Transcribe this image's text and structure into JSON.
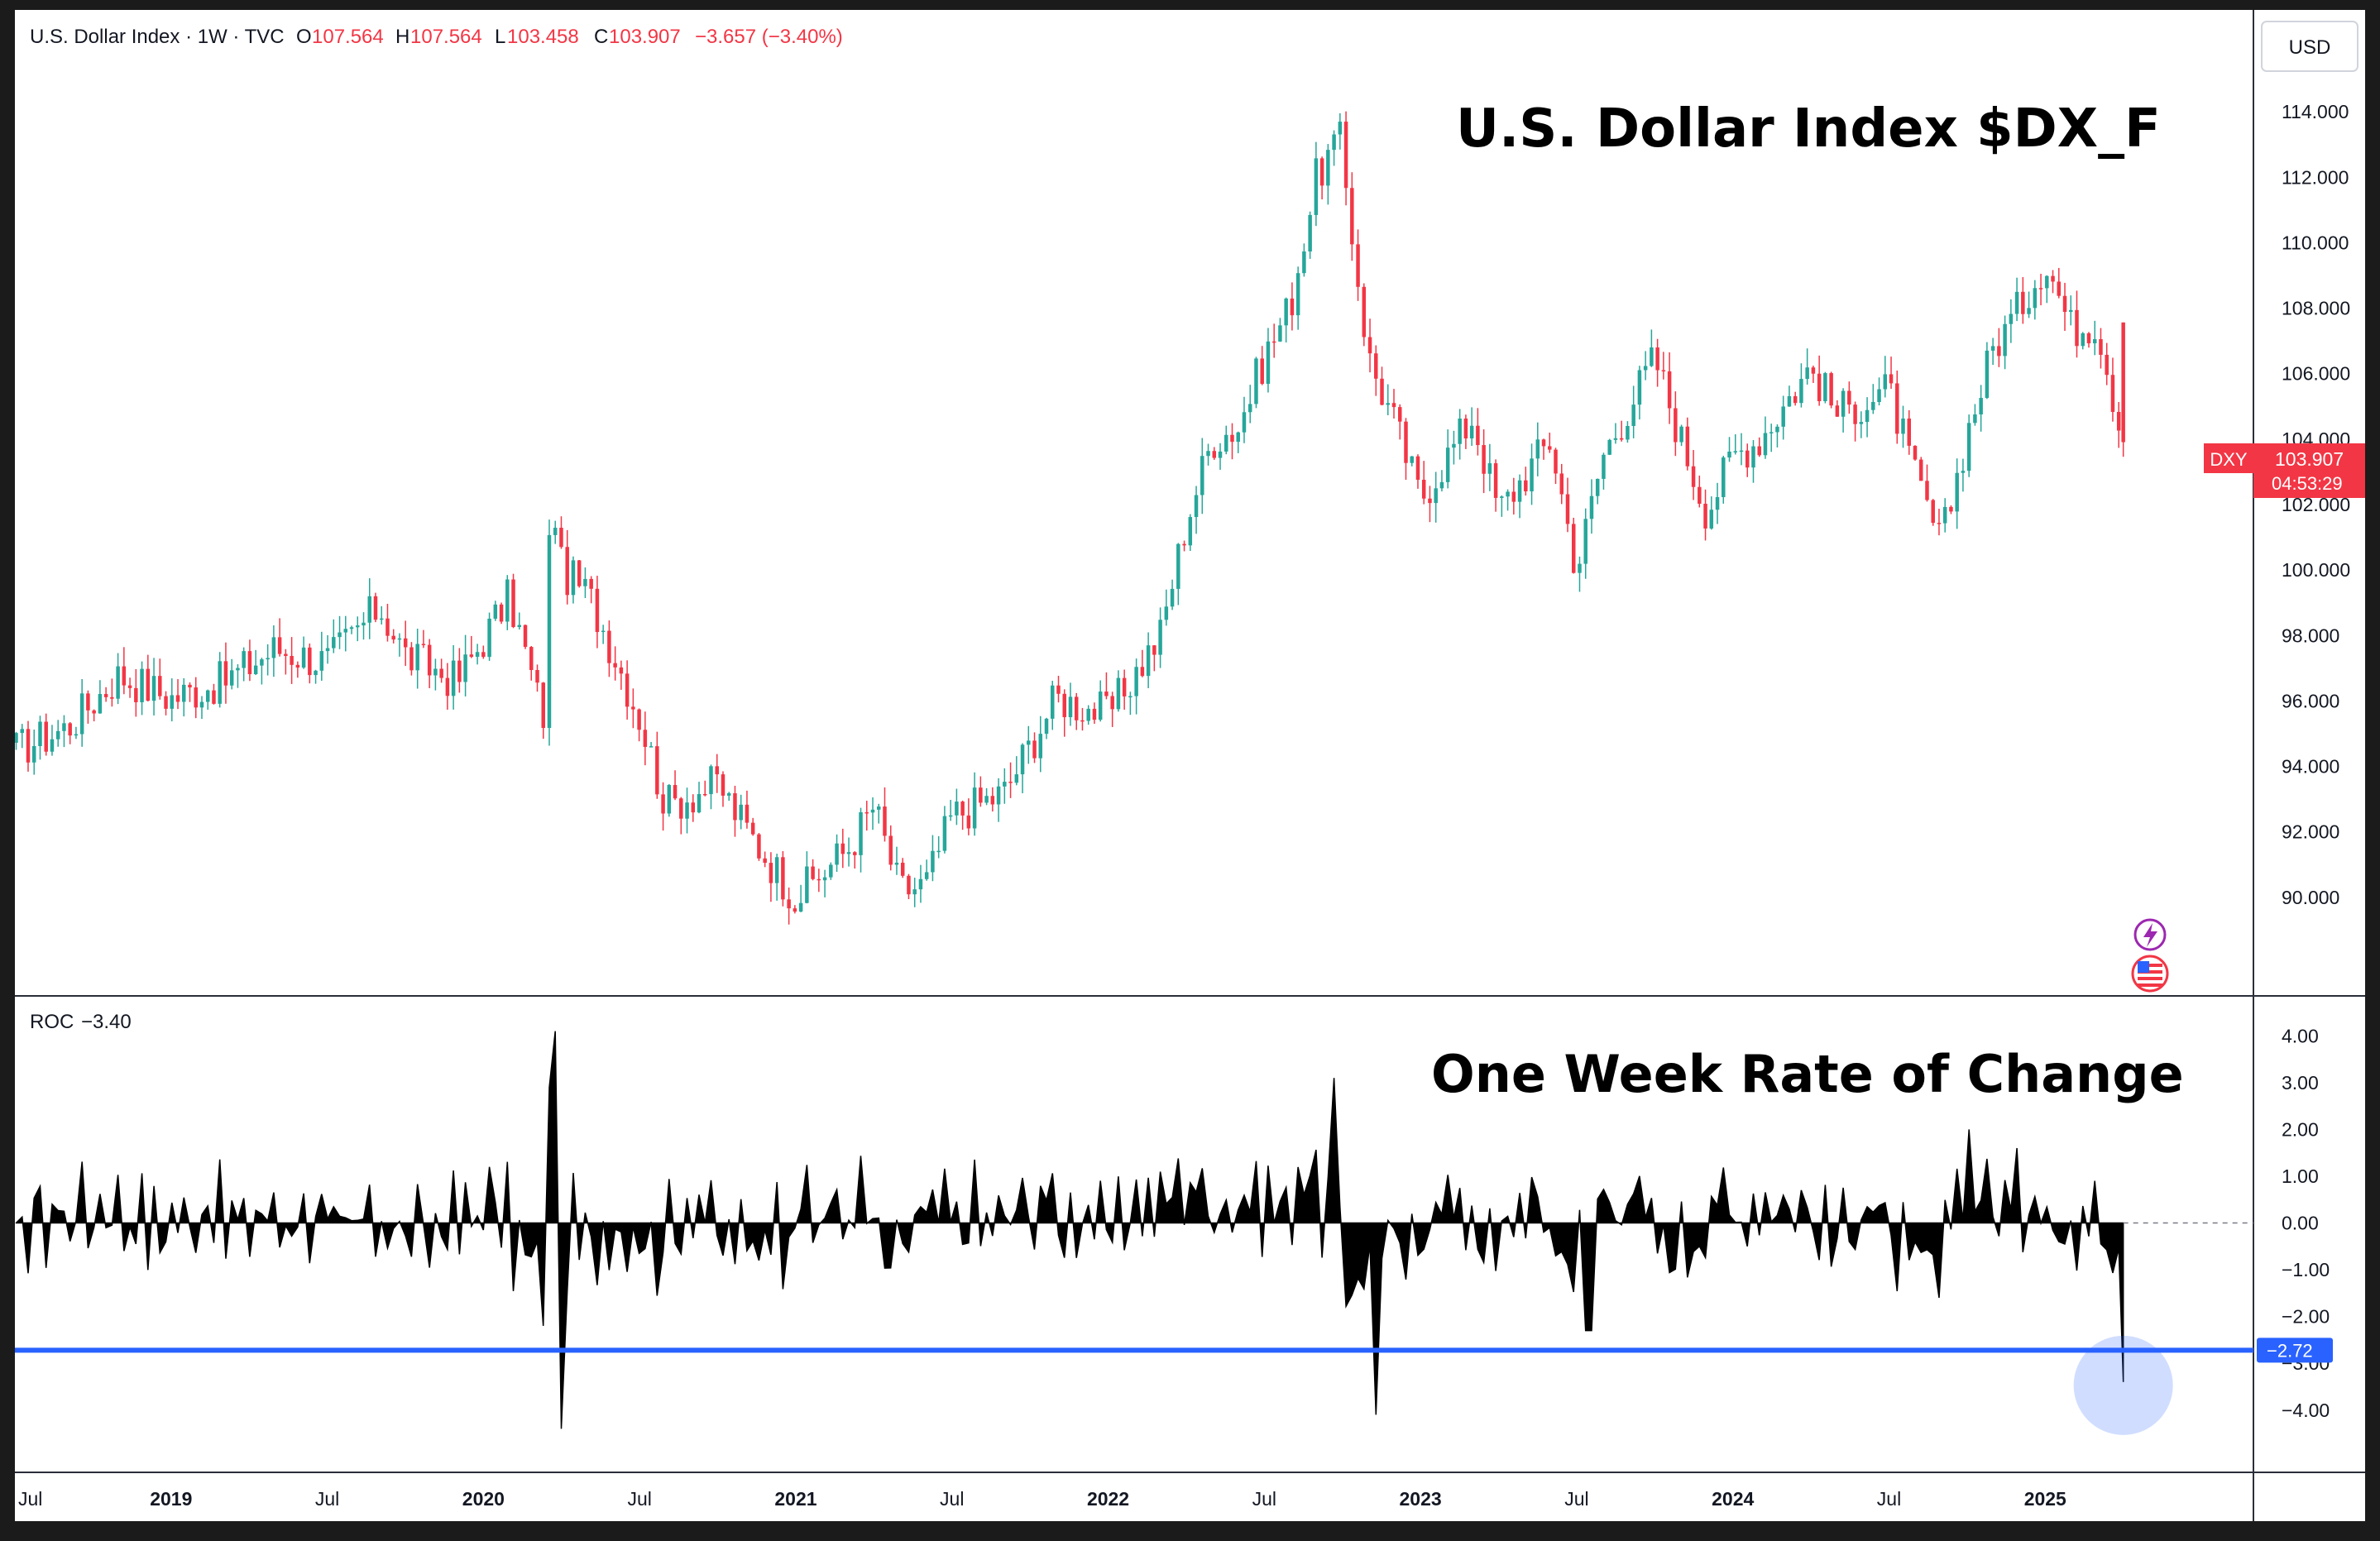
{
  "header": {
    "symbol": "U.S. Dollar Index · 1W · TVC",
    "o_label": "O",
    "o_value": "107.564",
    "h_label": "H",
    "h_value": "107.564",
    "l_label": "L",
    "l_value": "103.458",
    "c_label": "C",
    "c_value": "103.907",
    "change": "−3.657 (−3.40%)"
  },
  "currency_button": "USD",
  "price_badge": {
    "ticker": "DXY",
    "price": "103.907",
    "countdown": "04:53:29"
  },
  "roc_header": {
    "label": "ROC",
    "value": "−3.40"
  },
  "roc_badge": "−2.72",
  "colors": {
    "up": "#26a69a",
    "down": "#f23645",
    "roc_fill": "#000000",
    "level_line": "#2962ff",
    "badge": "#f23645"
  },
  "icons": [
    "lightning-icon",
    "us-flag-icon"
  ],
  "chart_data": [
    {
      "type": "candlestick",
      "title": "U.S. Dollar Index $DX_F",
      "interval": "1W",
      "ylim": [
        88,
        116
      ],
      "y_ticks": [
        "90.000",
        "92.000",
        "94.000",
        "96.000",
        "98.000",
        "100.000",
        "102.000",
        "104.000",
        "106.000",
        "108.000",
        "110.000",
        "112.000",
        "114.000"
      ],
      "x_ticks": [
        {
          "label": "Jul",
          "bold": false
        },
        {
          "label": "2019",
          "bold": true
        },
        {
          "label": "Jul",
          "bold": false
        },
        {
          "label": "2020",
          "bold": true
        },
        {
          "label": "Jul",
          "bold": false
        },
        {
          "label": "2021",
          "bold": true
        },
        {
          "label": "Jul",
          "bold": false
        },
        {
          "label": "2022",
          "bold": true
        },
        {
          "label": "Jul",
          "bold": false
        },
        {
          "label": "2023",
          "bold": true
        },
        {
          "label": "Jul",
          "bold": false
        },
        {
          "label": "2024",
          "bold": true
        },
        {
          "label": "Jul",
          "bold": false
        },
        {
          "label": "2025",
          "bold": true
        }
      ],
      "x_range": [
        "2018-07",
        "2025-09"
      ],
      "close_path": [
        {
          "t": "2018-07",
          "v": 94.5
        },
        {
          "t": "2018-09",
          "v": 95.2
        },
        {
          "t": "2018-11",
          "v": 96.8
        },
        {
          "t": "2019-01",
          "v": 96.1
        },
        {
          "t": "2019-03",
          "v": 96.6
        },
        {
          "t": "2019-05",
          "v": 97.6
        },
        {
          "t": "2019-07",
          "v": 97.2
        },
        {
          "t": "2019-09",
          "v": 98.9
        },
        {
          "t": "2019-10",
          "v": 97.4
        },
        {
          "t": "2019-12",
          "v": 96.6
        },
        {
          "t": "2020-02",
          "v": 99.2
        },
        {
          "t": "2020-03-10",
          "v": 95.5
        },
        {
          "t": "2020-03-20",
          "v": 102.8
        },
        {
          "t": "2020-04",
          "v": 100.0
        },
        {
          "t": "2020-05",
          "v": 99.3
        },
        {
          "t": "2020-06",
          "v": 97.5
        },
        {
          "t": "2020-07",
          "v": 95.5
        },
        {
          "t": "2020-08",
          "v": 92.8
        },
        {
          "t": "2020-10",
          "v": 93.5
        },
        {
          "t": "2020-11",
          "v": 92.2
        },
        {
          "t": "2021-01",
          "v": 90.0
        },
        {
          "t": "2021-03",
          "v": 91.5
        },
        {
          "t": "2021-04",
          "v": 92.8
        },
        {
          "t": "2021-05",
          "v": 90.2
        },
        {
          "t": "2021-06",
          "v": 90.4
        },
        {
          "t": "2021-07",
          "v": 92.5
        },
        {
          "t": "2021-09",
          "v": 93.2
        },
        {
          "t": "2021-11",
          "v": 96.1
        },
        {
          "t": "2022-01",
          "v": 95.6
        },
        {
          "t": "2022-03",
          "v": 98.0
        },
        {
          "t": "2022-04",
          "v": 101.5
        },
        {
          "t": "2022-05",
          "v": 104.0
        },
        {
          "t": "2022-06",
          "v": 104.4
        },
        {
          "t": "2022-07",
          "v": 106.5
        },
        {
          "t": "2022-08",
          "v": 108.1
        },
        {
          "t": "2022-09",
          "v": 112.0
        },
        {
          "t": "2022-09-28",
          "v": 113.2
        },
        {
          "t": "2022-11",
          "v": 106.5
        },
        {
          "t": "2022-12",
          "v": 104.5
        },
        {
          "t": "2023-01",
          "v": 102.2
        },
        {
          "t": "2023-03",
          "v": 104.7
        },
        {
          "t": "2023-04",
          "v": 101.8
        },
        {
          "t": "2023-06",
          "v": 104.0
        },
        {
          "t": "2023-07",
          "v": 100.0
        },
        {
          "t": "2023-08",
          "v": 103.5
        },
        {
          "t": "2023-10",
          "v": 106.5
        },
        {
          "t": "2023-11",
          "v": 104.0
        },
        {
          "t": "2023-12",
          "v": 101.8
        },
        {
          "t": "2024-01",
          "v": 103.5
        },
        {
          "t": "2024-02",
          "v": 104.0
        },
        {
          "t": "2024-04",
          "v": 106.2
        },
        {
          "t": "2024-05",
          "v": 104.8
        },
        {
          "t": "2024-07",
          "v": 105.5
        },
        {
          "t": "2024-08",
          "v": 102.8
        },
        {
          "t": "2024-09",
          "v": 100.8
        },
        {
          "t": "2024-10",
          "v": 104.2
        },
        {
          "t": "2024-11",
          "v": 106.8
        },
        {
          "t": "2024-12",
          "v": 108.0
        },
        {
          "t": "2025-01",
          "v": 109.5
        },
        {
          "t": "2025-02",
          "v": 107.4
        },
        {
          "t": "2025-03",
          "v": 107.6
        },
        {
          "t": "2025-04",
          "v": 103.907
        }
      ]
    },
    {
      "type": "area",
      "title": "One Week Rate of Change",
      "ylim": [
        -4.8,
        4.5
      ],
      "y_ticks": [
        "4.00",
        "3.00",
        "2.00",
        "1.00",
        "0.00",
        "−1.00",
        "−2.00",
        "−3.00",
        "−4.00"
      ],
      "zero_line": "dashed",
      "level_line": -2.72,
      "highlight": {
        "t": "2025-04",
        "v": -3.4
      },
      "roc_points": [
        {
          "t": "2020-03-08",
          "v": -2.2
        },
        {
          "t": "2020-03-15",
          "v": 2.9
        },
        {
          "t": "2020-03-22",
          "v": 4.1
        },
        {
          "t": "2020-03-29",
          "v": -4.4
        },
        {
          "t": "2020-04",
          "v": 0.8
        },
        {
          "t": "2022-09-20",
          "v": 3.1
        },
        {
          "t": "2022-11-10",
          "v": -4.1
        },
        {
          "t": "2023-07-15",
          "v": -2.3
        },
        {
          "t": "2024-09",
          "v": -1.6
        },
        {
          "t": "2024-10",
          "v": 2.0
        },
        {
          "t": "2024-12",
          "v": 1.6
        },
        {
          "t": "2025-03-01",
          "v": 0.9
        },
        {
          "t": "2025-04",
          "v": -3.4
        }
      ]
    }
  ]
}
